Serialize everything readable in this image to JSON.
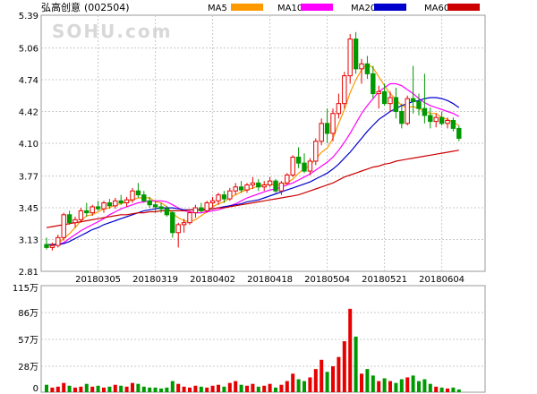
{
  "header": {
    "title": "弘高创意",
    "code": "(002504)",
    "watermark": "SOHU.com"
  },
  "legend": [
    {
      "name": "MA5",
      "color": "#ff9900"
    },
    {
      "name": "MA10",
      "color": "#ff00ff"
    },
    {
      "name": "MA20",
      "color": "#0000cc"
    },
    {
      "name": "MA60",
      "color": "#cc0000"
    }
  ],
  "colors": {
    "up": "#e60000",
    "down": "#009900",
    "grid": "#c8c8c8",
    "frame": "#999999"
  },
  "chart_data": [
    {
      "type": "candlestick",
      "ylim": [
        2.81,
        5.39
      ],
      "yticks": [
        "5.39",
        "5.06",
        "4.74",
        "4.42",
        "4.10",
        "3.77",
        "3.45",
        "3.13",
        "2.81"
      ],
      "xticks": [
        {
          "label": "20180305",
          "index": 9
        },
        {
          "label": "20180319",
          "index": 19
        },
        {
          "label": "20180402",
          "index": 29
        },
        {
          "label": "20180418",
          "index": 39
        },
        {
          "label": "20180504",
          "index": 49
        },
        {
          "label": "20180521",
          "index": 59
        },
        {
          "label": "20180604",
          "index": 69
        }
      ],
      "ohlc": [
        [
          3.08,
          3.15,
          3.03,
          3.05
        ],
        [
          3.05,
          3.1,
          3.02,
          3.07
        ],
        [
          3.07,
          3.18,
          3.05,
          3.15
        ],
        [
          3.15,
          3.4,
          3.12,
          3.38
        ],
        [
          3.38,
          3.42,
          3.28,
          3.3
        ],
        [
          3.3,
          3.36,
          3.25,
          3.33
        ],
        [
          3.33,
          3.45,
          3.3,
          3.42
        ],
        [
          3.42,
          3.5,
          3.36,
          3.4
        ],
        [
          3.4,
          3.48,
          3.37,
          3.46
        ],
        [
          3.46,
          3.52,
          3.42,
          3.44
        ],
        [
          3.44,
          3.52,
          3.4,
          3.5
        ],
        [
          3.5,
          3.54,
          3.44,
          3.47
        ],
        [
          3.47,
          3.55,
          3.44,
          3.52
        ],
        [
          3.52,
          3.58,
          3.48,
          3.5
        ],
        [
          3.5,
          3.56,
          3.46,
          3.53
        ],
        [
          3.53,
          3.65,
          3.5,
          3.62
        ],
        [
          3.62,
          3.7,
          3.55,
          3.58
        ],
        [
          3.58,
          3.62,
          3.5,
          3.52
        ],
        [
          3.52,
          3.56,
          3.45,
          3.48
        ],
        [
          3.48,
          3.52,
          3.4,
          3.46
        ],
        [
          3.46,
          3.5,
          3.4,
          3.44
        ],
        [
          3.44,
          3.47,
          3.36,
          3.38
        ],
        [
          3.4,
          3.42,
          3.15,
          3.2
        ],
        [
          3.2,
          3.3,
          3.05,
          3.28
        ],
        [
          3.28,
          3.34,
          3.2,
          3.3
        ],
        [
          3.3,
          3.42,
          3.28,
          3.4
        ],
        [
          3.4,
          3.48,
          3.35,
          3.45
        ],
        [
          3.45,
          3.5,
          3.4,
          3.42
        ],
        [
          3.42,
          3.52,
          3.4,
          3.5
        ],
        [
          3.5,
          3.56,
          3.45,
          3.52
        ],
        [
          3.52,
          3.6,
          3.48,
          3.58
        ],
        [
          3.58,
          3.62,
          3.5,
          3.54
        ],
        [
          3.54,
          3.65,
          3.52,
          3.62
        ],
        [
          3.62,
          3.7,
          3.58,
          3.66
        ],
        [
          3.66,
          3.72,
          3.6,
          3.63
        ],
        [
          3.63,
          3.7,
          3.6,
          3.68
        ],
        [
          3.68,
          3.76,
          3.64,
          3.7
        ],
        [
          3.7,
          3.74,
          3.62,
          3.66
        ],
        [
          3.66,
          3.72,
          3.62,
          3.68
        ],
        [
          3.68,
          3.76,
          3.66,
          3.72
        ],
        [
          3.72,
          3.74,
          3.6,
          3.62
        ],
        [
          3.62,
          3.72,
          3.58,
          3.7
        ],
        [
          3.7,
          3.8,
          3.68,
          3.78
        ],
        [
          3.78,
          3.98,
          3.76,
          3.96
        ],
        [
          3.96,
          4.06,
          3.85,
          3.9
        ],
        [
          3.9,
          4.0,
          3.8,
          3.82
        ],
        [
          3.82,
          3.95,
          3.78,
          3.92
        ],
        [
          3.92,
          4.15,
          3.88,
          4.12
        ],
        [
          4.12,
          4.35,
          4.08,
          4.3
        ],
        [
          4.3,
          4.45,
          4.1,
          4.2
        ],
        [
          4.2,
          4.45,
          4.12,
          4.4
        ],
        [
          4.4,
          4.6,
          4.35,
          4.5
        ],
        [
          4.5,
          4.82,
          4.45,
          4.78
        ],
        [
          4.78,
          5.2,
          4.7,
          5.15
        ],
        [
          5.15,
          5.22,
          4.8,
          4.85
        ],
        [
          4.85,
          4.95,
          4.7,
          4.9
        ],
        [
          4.9,
          4.98,
          4.75,
          4.8
        ],
        [
          4.8,
          4.88,
          4.55,
          4.6
        ],
        [
          4.6,
          4.68,
          4.45,
          4.62
        ],
        [
          4.62,
          4.7,
          4.48,
          4.5
        ],
        [
          4.5,
          4.62,
          4.42,
          4.56
        ],
        [
          4.56,
          4.66,
          4.35,
          4.42
        ],
        [
          4.42,
          4.5,
          4.25,
          4.3
        ],
        [
          4.3,
          4.58,
          4.28,
          4.55
        ],
        [
          4.55,
          4.88,
          4.4,
          4.52
        ],
        [
          4.52,
          4.6,
          4.38,
          4.45
        ],
        [
          4.45,
          4.8,
          4.3,
          4.38
        ],
        [
          4.38,
          4.46,
          4.25,
          4.32
        ],
        [
          4.32,
          4.4,
          4.26,
          4.36
        ],
        [
          4.36,
          4.42,
          4.28,
          4.3
        ],
        [
          4.3,
          4.36,
          4.25,
          4.33
        ],
        [
          4.33,
          4.36,
          4.22,
          4.25
        ],
        [
          4.25,
          4.28,
          4.12,
          4.15
        ]
      ],
      "ma": {
        "MA5": [
          3.08,
          3.08,
          3.09,
          3.14,
          3.19,
          3.25,
          3.32,
          3.37,
          3.38,
          3.41,
          3.44,
          3.45,
          3.48,
          3.49,
          3.51,
          3.53,
          3.55,
          3.55,
          3.55,
          3.51,
          3.5,
          3.46,
          3.39,
          3.35,
          3.32,
          3.31,
          3.33,
          3.37,
          3.41,
          3.46,
          3.49,
          3.51,
          3.55,
          3.58,
          3.61,
          3.63,
          3.65,
          3.67,
          3.68,
          3.69,
          3.68,
          3.68,
          3.7,
          3.74,
          3.8,
          3.84,
          3.88,
          3.94,
          4.01,
          4.05,
          4.15,
          4.3,
          4.44,
          4.61,
          4.74,
          4.84,
          4.9,
          4.86,
          4.77,
          4.68,
          4.6,
          4.54,
          4.48,
          4.46,
          4.47,
          4.45,
          4.42,
          4.4,
          4.4,
          4.36,
          4.34,
          4.31,
          4.28
        ],
        "MA10": [
          3.08,
          3.08,
          3.08,
          3.1,
          3.14,
          3.18,
          3.22,
          3.25,
          3.28,
          3.31,
          3.34,
          3.38,
          3.41,
          3.44,
          3.46,
          3.48,
          3.5,
          3.51,
          3.52,
          3.52,
          3.52,
          3.51,
          3.48,
          3.45,
          3.42,
          3.41,
          3.4,
          3.4,
          3.41,
          3.42,
          3.43,
          3.45,
          3.47,
          3.49,
          3.52,
          3.55,
          3.57,
          3.59,
          3.61,
          3.63,
          3.64,
          3.66,
          3.68,
          3.7,
          3.73,
          3.76,
          3.79,
          3.83,
          3.87,
          3.91,
          3.96,
          4.03,
          4.11,
          4.2,
          4.3,
          4.4,
          4.48,
          4.55,
          4.62,
          4.66,
          4.7,
          4.7,
          4.68,
          4.64,
          4.6,
          4.55,
          4.51,
          4.48,
          4.46,
          4.44,
          4.42,
          4.4,
          4.37
        ],
        "MA20": [
          3.08,
          3.08,
          3.08,
          3.09,
          3.11,
          3.14,
          3.17,
          3.2,
          3.23,
          3.25,
          3.28,
          3.3,
          3.32,
          3.34,
          3.36,
          3.38,
          3.4,
          3.42,
          3.43,
          3.44,
          3.45,
          3.45,
          3.45,
          3.44,
          3.43,
          3.43,
          3.43,
          3.43,
          3.43,
          3.44,
          3.45,
          3.46,
          3.47,
          3.48,
          3.49,
          3.51,
          3.52,
          3.53,
          3.55,
          3.57,
          3.59,
          3.61,
          3.63,
          3.65,
          3.67,
          3.69,
          3.71,
          3.74,
          3.77,
          3.8,
          3.84,
          3.89,
          3.95,
          4.01,
          4.08,
          4.15,
          4.22,
          4.28,
          4.34,
          4.38,
          4.42,
          4.45,
          4.48,
          4.5,
          4.52,
          4.53,
          4.55,
          4.56,
          4.56,
          4.55,
          4.53,
          4.5,
          4.46
        ],
        "MA60": [
          3.25,
          3.26,
          3.27,
          3.28,
          3.29,
          3.3,
          3.31,
          3.32,
          3.33,
          3.34,
          3.35,
          3.36,
          3.37,
          3.38,
          3.38,
          3.39,
          3.4,
          3.4,
          3.41,
          3.41,
          3.42,
          3.42,
          3.42,
          3.42,
          3.42,
          3.43,
          3.43,
          3.43,
          3.44,
          3.44,
          3.45,
          3.45,
          3.46,
          3.47,
          3.48,
          3.49,
          3.5,
          3.51,
          3.52,
          3.53,
          3.54,
          3.55,
          3.56,
          3.57,
          3.58,
          3.6,
          3.62,
          3.64,
          3.66,
          3.68,
          3.7,
          3.73,
          3.76,
          3.78,
          3.8,
          3.82,
          3.84,
          3.86,
          3.87,
          3.89,
          3.9,
          3.92,
          3.93,
          3.94,
          3.95,
          3.96,
          3.97,
          3.98,
          3.99,
          4.0,
          4.01,
          4.02,
          4.03
        ]
      }
    },
    {
      "type": "bar",
      "ylim": [
        0,
        115
      ],
      "yticks": [
        "115万",
        "86万",
        "57万",
        "28万",
        "0"
      ],
      "values": [
        8,
        5,
        6,
        10,
        7,
        5,
        6,
        9,
        6,
        7,
        5,
        6,
        8,
        7,
        6,
        10,
        9,
        6,
        5,
        5,
        4,
        5,
        12,
        9,
        6,
        5,
        7,
        6,
        5,
        7,
        8,
        6,
        10,
        12,
        8,
        7,
        9,
        6,
        7,
        9,
        5,
        8,
        12,
        20,
        14,
        12,
        16,
        25,
        35,
        22,
        28,
        38,
        55,
        90,
        60,
        20,
        25,
        18,
        12,
        15,
        12,
        10,
        14,
        16,
        18,
        12,
        14,
        9,
        6,
        5,
        4,
        5,
        3
      ]
    }
  ]
}
